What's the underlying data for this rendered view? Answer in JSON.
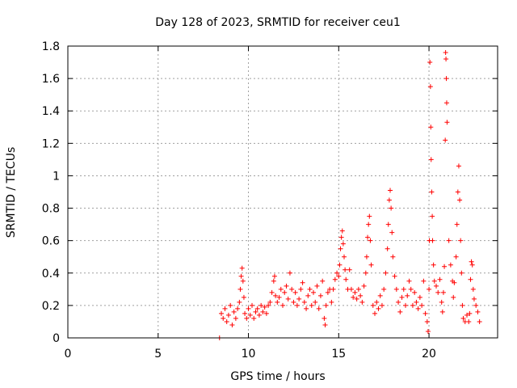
{
  "chart_data": {
    "type": "scatter",
    "title": "Day 128 of 2023, SRMTID for receiver ceu1",
    "xlabel": "GPS time / hours",
    "ylabel": "SRMTID / TECUs",
    "xlim": [
      0,
      23.8
    ],
    "ylim": [
      0,
      1.8
    ],
    "xticks": [
      0,
      5,
      10,
      15,
      20
    ],
    "xtick_labels": [
      "0",
      "5",
      "10",
      "15",
      "20"
    ],
    "yticks": [
      0,
      0.2,
      0.4,
      0.6,
      0.8,
      1.0,
      1.2,
      1.4,
      1.6,
      1.8
    ],
    "ytick_labels": [
      "0",
      "0.2",
      "0.4",
      "0.6",
      "0.8",
      "1",
      "1.2",
      "1.4",
      "1.6",
      "1.8"
    ],
    "grid": true,
    "marker": "+",
    "color": "#ff0000",
    "series": [
      {
        "name": "SRMTID",
        "points": [
          [
            8.4,
            0.0
          ],
          [
            8.5,
            0.15
          ],
          [
            8.6,
            0.12
          ],
          [
            8.7,
            0.18
          ],
          [
            8.8,
            0.1
          ],
          [
            8.9,
            0.14
          ],
          [
            9.0,
            0.2
          ],
          [
            9.1,
            0.08
          ],
          [
            9.2,
            0.16
          ],
          [
            9.3,
            0.12
          ],
          [
            9.4,
            0.18
          ],
          [
            9.5,
            0.22
          ],
          [
            9.55,
            0.3
          ],
          [
            9.6,
            0.38
          ],
          [
            9.65,
            0.43
          ],
          [
            9.7,
            0.35
          ],
          [
            9.75,
            0.25
          ],
          [
            9.8,
            0.15
          ],
          [
            9.9,
            0.12
          ],
          [
            10.0,
            0.18
          ],
          [
            10.1,
            0.14
          ],
          [
            10.2,
            0.2
          ],
          [
            10.3,
            0.12
          ],
          [
            10.4,
            0.16
          ],
          [
            10.5,
            0.18
          ],
          [
            10.6,
            0.14
          ],
          [
            10.7,
            0.2
          ],
          [
            10.8,
            0.16
          ],
          [
            10.9,
            0.19
          ],
          [
            11.0,
            0.15
          ],
          [
            11.1,
            0.2
          ],
          [
            11.2,
            0.22
          ],
          [
            11.3,
            0.28
          ],
          [
            11.4,
            0.35
          ],
          [
            11.45,
            0.38
          ],
          [
            11.5,
            0.26
          ],
          [
            11.6,
            0.22
          ],
          [
            11.7,
            0.25
          ],
          [
            11.8,
            0.3
          ],
          [
            11.9,
            0.2
          ],
          [
            12.0,
            0.28
          ],
          [
            12.1,
            0.32
          ],
          [
            12.2,
            0.24
          ],
          [
            12.3,
            0.4
          ],
          [
            12.4,
            0.3
          ],
          [
            12.5,
            0.22
          ],
          [
            12.6,
            0.28
          ],
          [
            12.7,
            0.2
          ],
          [
            12.8,
            0.24
          ],
          [
            12.9,
            0.3
          ],
          [
            13.0,
            0.34
          ],
          [
            13.1,
            0.22
          ],
          [
            13.2,
            0.18
          ],
          [
            13.3,
            0.26
          ],
          [
            13.4,
            0.3
          ],
          [
            13.5,
            0.2
          ],
          [
            13.6,
            0.28
          ],
          [
            13.7,
            0.22
          ],
          [
            13.8,
            0.32
          ],
          [
            13.9,
            0.18
          ],
          [
            14.0,
            0.26
          ],
          [
            14.1,
            0.35
          ],
          [
            14.2,
            0.12
          ],
          [
            14.25,
            0.08
          ],
          [
            14.3,
            0.2
          ],
          [
            14.4,
            0.28
          ],
          [
            14.5,
            0.3
          ],
          [
            14.6,
            0.22
          ],
          [
            14.7,
            0.3
          ],
          [
            14.8,
            0.36
          ],
          [
            14.9,
            0.4
          ],
          [
            15.0,
            0.38
          ],
          [
            15.05,
            0.45
          ],
          [
            15.1,
            0.55
          ],
          [
            15.15,
            0.62
          ],
          [
            15.2,
            0.66
          ],
          [
            15.25,
            0.58
          ],
          [
            15.3,
            0.5
          ],
          [
            15.35,
            0.42
          ],
          [
            15.4,
            0.36
          ],
          [
            15.5,
            0.3
          ],
          [
            15.6,
            0.42
          ],
          [
            15.7,
            0.3
          ],
          [
            15.8,
            0.25
          ],
          [
            15.9,
            0.28
          ],
          [
            16.0,
            0.24
          ],
          [
            16.1,
            0.3
          ],
          [
            16.2,
            0.26
          ],
          [
            16.3,
            0.22
          ],
          [
            16.4,
            0.32
          ],
          [
            16.5,
            0.4
          ],
          [
            16.55,
            0.5
          ],
          [
            16.6,
            0.62
          ],
          [
            16.65,
            0.7
          ],
          [
            16.7,
            0.75
          ],
          [
            16.75,
            0.6
          ],
          [
            16.8,
            0.45
          ],
          [
            16.9,
            0.2
          ],
          [
            17.0,
            0.15
          ],
          [
            17.1,
            0.22
          ],
          [
            17.2,
            0.18
          ],
          [
            17.3,
            0.26
          ],
          [
            17.4,
            0.2
          ],
          [
            17.5,
            0.3
          ],
          [
            17.6,
            0.4
          ],
          [
            17.7,
            0.55
          ],
          [
            17.75,
            0.7
          ],
          [
            17.8,
            0.85
          ],
          [
            17.85,
            0.91
          ],
          [
            17.9,
            0.8
          ],
          [
            17.95,
            0.65
          ],
          [
            18.0,
            0.5
          ],
          [
            18.1,
            0.38
          ],
          [
            18.2,
            0.3
          ],
          [
            18.3,
            0.22
          ],
          [
            18.4,
            0.16
          ],
          [
            18.5,
            0.25
          ],
          [
            18.6,
            0.3
          ],
          [
            18.7,
            0.2
          ],
          [
            18.8,
            0.26
          ],
          [
            18.9,
            0.35
          ],
          [
            19.0,
            0.3
          ],
          [
            19.1,
            0.2
          ],
          [
            19.2,
            0.28
          ],
          [
            19.3,
            0.22
          ],
          [
            19.4,
            0.18
          ],
          [
            19.5,
            0.25
          ],
          [
            19.6,
            0.2
          ],
          [
            19.7,
            0.35
          ],
          [
            19.8,
            0.15
          ],
          [
            19.9,
            0.1
          ],
          [
            19.95,
            0.04
          ],
          [
            20.0,
            0.3
          ],
          [
            20.02,
            0.6
          ],
          [
            20.05,
            1.7
          ],
          [
            20.08,
            1.55
          ],
          [
            20.1,
            1.3
          ],
          [
            20.12,
            1.1
          ],
          [
            20.15,
            0.9
          ],
          [
            20.18,
            0.75
          ],
          [
            20.2,
            0.6
          ],
          [
            20.25,
            0.45
          ],
          [
            20.3,
            0.35
          ],
          [
            20.4,
            0.32
          ],
          [
            20.5,
            0.28
          ],
          [
            20.6,
            0.36
          ],
          [
            20.7,
            0.22
          ],
          [
            20.75,
            0.16
          ],
          [
            20.8,
            0.28
          ],
          [
            20.85,
            0.44
          ],
          [
            20.9,
            1.22
          ],
          [
            20.92,
            1.76
          ],
          [
            20.94,
            1.72
          ],
          [
            20.96,
            1.6
          ],
          [
            20.98,
            1.45
          ],
          [
            21.0,
            1.33
          ],
          [
            21.1,
            0.6
          ],
          [
            21.2,
            0.45
          ],
          [
            21.3,
            0.35
          ],
          [
            21.35,
            0.25
          ],
          [
            21.4,
            0.34
          ],
          [
            21.5,
            0.5
          ],
          [
            21.55,
            0.7
          ],
          [
            21.6,
            0.9
          ],
          [
            21.65,
            1.06
          ],
          [
            21.7,
            0.85
          ],
          [
            21.75,
            0.6
          ],
          [
            21.8,
            0.4
          ],
          [
            21.85,
            0.2
          ],
          [
            21.9,
            0.12
          ],
          [
            22.0,
            0.1
          ],
          [
            22.1,
            0.14
          ],
          [
            22.2,
            0.1
          ],
          [
            22.25,
            0.15
          ],
          [
            22.3,
            0.36
          ],
          [
            22.35,
            0.47
          ],
          [
            22.4,
            0.45
          ],
          [
            22.45,
            0.3
          ],
          [
            22.5,
            0.24
          ],
          [
            22.6,
            0.2
          ],
          [
            22.7,
            0.16
          ],
          [
            22.8,
            0.1
          ]
        ]
      }
    ]
  }
}
